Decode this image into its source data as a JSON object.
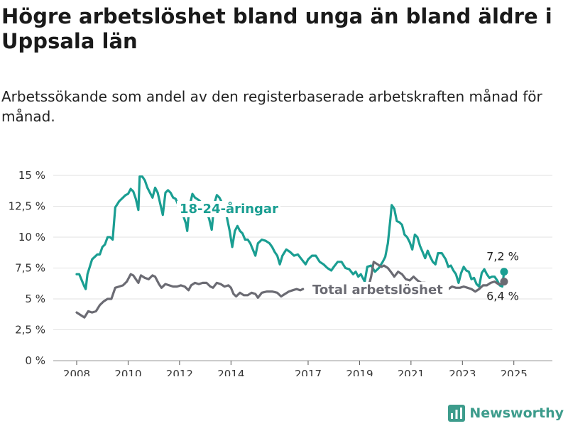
{
  "chart_data": {
    "type": "line",
    "title": "Högre arbetslöshet bland unga än bland äldre i Uppsala län",
    "subtitle": "Arbetssökande som andel av den registerbaserade arbetskraften månad för månad.",
    "ylim": [
      0,
      15
    ],
    "y_ticks": [
      "0 %",
      "2,5 %",
      "5 %",
      "7,5 %",
      "10 %",
      "12,5 %",
      "15 %"
    ],
    "y_tick_values": [
      0,
      2.5,
      5,
      7.5,
      10,
      12.5,
      15
    ],
    "x_range": [
      2008.0,
      2025.67
    ],
    "x_ticks": [
      "2008",
      "2010",
      "2012",
      "2014",
      "2017",
      "2019",
      "2021",
      "2023",
      "2025"
    ],
    "x_tick_values": [
      2008,
      2010,
      2012,
      2014,
      2017,
      2019,
      2021,
      2023,
      2025
    ],
    "grid": "horizontal",
    "series": [
      {
        "name": "18-24-åringar",
        "color": "#1a9e92",
        "end_label": "7,2 %",
        "points": [
          [
            2008.0,
            7.0
          ],
          [
            2008.1,
            7.0
          ],
          [
            2008.2,
            6.5
          ],
          [
            2008.3,
            6.0
          ],
          [
            2008.35,
            5.8
          ],
          [
            2008.42,
            7.0
          ],
          [
            2008.6,
            8.2
          ],
          [
            2008.8,
            8.6
          ],
          [
            2008.9,
            8.6
          ],
          [
            2009.0,
            9.2
          ],
          [
            2009.1,
            9.4
          ],
          [
            2009.2,
            10.0
          ],
          [
            2009.3,
            10.0
          ],
          [
            2009.4,
            9.8
          ],
          [
            2009.5,
            12.4
          ],
          [
            2009.65,
            12.9
          ],
          [
            2009.8,
            13.2
          ],
          [
            2009.9,
            13.4
          ],
          [
            2010.0,
            13.5
          ],
          [
            2010.1,
            13.9
          ],
          [
            2010.2,
            13.7
          ],
          [
            2010.3,
            13.1
          ],
          [
            2010.4,
            12.2
          ],
          [
            2010.45,
            14.9
          ],
          [
            2010.55,
            14.9
          ],
          [
            2010.65,
            14.6
          ],
          [
            2010.75,
            14.0
          ],
          [
            2010.85,
            13.6
          ],
          [
            2010.95,
            13.2
          ],
          [
            2011.05,
            14.0
          ],
          [
            2011.15,
            13.6
          ],
          [
            2011.25,
            12.7
          ],
          [
            2011.35,
            11.8
          ],
          [
            2011.45,
            13.6
          ],
          [
            2011.55,
            13.8
          ],
          [
            2011.65,
            13.6
          ],
          [
            2011.75,
            13.2
          ],
          [
            2011.85,
            13.1
          ],
          [
            2011.95,
            12.6
          ],
          [
            2012.05,
            11.8
          ],
          [
            2012.15,
            11.7
          ],
          [
            2012.25,
            11.1
          ],
          [
            2012.3,
            10.5
          ],
          [
            2012.38,
            12.4
          ],
          [
            2012.5,
            13.5
          ],
          [
            2012.6,
            13.2
          ],
          [
            2012.75,
            13.0
          ],
          [
            2012.85,
            12.8
          ],
          [
            2012.95,
            12.5
          ],
          [
            2013.05,
            12.0
          ],
          [
            2013.15,
            11.5
          ],
          [
            2013.25,
            10.6
          ],
          [
            2013.35,
            12.7
          ],
          [
            2013.45,
            13.4
          ],
          [
            2013.55,
            13.2
          ],
          [
            2013.65,
            12.8
          ],
          [
            2013.75,
            12.4
          ],
          [
            2013.85,
            11.5
          ],
          [
            2013.95,
            10.5
          ],
          [
            2014.05,
            9.2
          ],
          [
            2014.15,
            10.5
          ],
          [
            2014.25,
            10.9
          ],
          [
            2014.35,
            10.5
          ],
          [
            2014.45,
            10.3
          ],
          [
            2014.55,
            9.8
          ],
          [
            2014.65,
            9.8
          ],
          [
            2014.75,
            9.5
          ],
          [
            2014.85,
            9.0
          ],
          [
            2014.95,
            8.5
          ],
          [
            2015.05,
            9.5
          ],
          [
            2015.2,
            9.8
          ],
          [
            2015.35,
            9.7
          ],
          [
            2015.5,
            9.5
          ],
          [
            2015.6,
            9.2
          ],
          [
            2015.7,
            8.8
          ],
          [
            2015.8,
            8.5
          ],
          [
            2015.9,
            7.8
          ],
          [
            2016.0,
            8.5
          ],
          [
            2016.15,
            9.0
          ],
          [
            2016.3,
            8.8
          ],
          [
            2016.45,
            8.5
          ],
          [
            2016.6,
            8.6
          ],
          [
            2016.75,
            8.2
          ],
          [
            2016.9,
            7.8
          ],
          [
            2017.0,
            8.2
          ],
          [
            2017.15,
            8.5
          ],
          [
            2017.3,
            8.5
          ],
          [
            2017.45,
            8.0
          ],
          [
            2017.6,
            7.8
          ],
          [
            2017.75,
            7.5
          ],
          [
            2017.9,
            7.3
          ],
          [
            2018.0,
            7.6
          ],
          [
            2018.15,
            8.0
          ],
          [
            2018.3,
            8.0
          ],
          [
            2018.45,
            7.5
          ],
          [
            2018.6,
            7.4
          ],
          [
            2018.75,
            7.0
          ],
          [
            2018.85,
            7.2
          ],
          [
            2018.95,
            6.8
          ],
          [
            2019.05,
            7.0
          ],
          [
            2019.2,
            6.4
          ],
          [
            2019.3,
            7.6
          ],
          [
            2019.45,
            7.7
          ],
          [
            2019.6,
            7.2
          ],
          [
            2019.75,
            7.5
          ],
          [
            2019.9,
            8.0
          ],
          [
            2020.0,
            8.4
          ],
          [
            2020.1,
            9.5
          ],
          [
            2020.2,
            11.5
          ],
          [
            2020.25,
            12.6
          ],
          [
            2020.35,
            12.3
          ],
          [
            2020.45,
            11.3
          ],
          [
            2020.55,
            11.2
          ],
          [
            2020.65,
            11.0
          ],
          [
            2020.75,
            10.2
          ],
          [
            2020.85,
            10.0
          ],
          [
            2020.95,
            9.6
          ],
          [
            2021.05,
            9.0
          ],
          [
            2021.15,
            10.2
          ],
          [
            2021.25,
            10.0
          ],
          [
            2021.35,
            9.3
          ],
          [
            2021.45,
            8.8
          ],
          [
            2021.55,
            8.3
          ],
          [
            2021.65,
            8.9
          ],
          [
            2021.75,
            8.4
          ],
          [
            2021.85,
            8.0
          ],
          [
            2021.95,
            7.8
          ],
          [
            2022.05,
            8.7
          ],
          [
            2022.2,
            8.7
          ],
          [
            2022.35,
            8.2
          ],
          [
            2022.45,
            7.6
          ],
          [
            2022.55,
            7.7
          ],
          [
            2022.65,
            7.3
          ],
          [
            2022.75,
            7.0
          ],
          [
            2022.85,
            6.3
          ],
          [
            2022.95,
            7.1
          ],
          [
            2023.05,
            7.6
          ],
          [
            2023.15,
            7.3
          ],
          [
            2023.25,
            7.2
          ],
          [
            2023.35,
            6.6
          ],
          [
            2023.45,
            6.7
          ],
          [
            2023.55,
            6.2
          ],
          [
            2023.65,
            6.0
          ],
          [
            2023.75,
            7.1
          ],
          [
            2023.85,
            7.4
          ],
          [
            2023.95,
            7.0
          ],
          [
            2024.05,
            6.7
          ],
          [
            2024.15,
            6.8
          ],
          [
            2024.25,
            6.8
          ],
          [
            2024.35,
            6.5
          ],
          [
            2024.45,
            6.1
          ],
          [
            2024.55,
            6.0
          ],
          [
            2024.62,
            7.2
          ]
        ]
      },
      {
        "name": "Total arbetslöshet",
        "color": "#6b6b73",
        "end_label": "6,4 %",
        "points": [
          [
            2008.0,
            3.9
          ],
          [
            2008.15,
            3.7
          ],
          [
            2008.3,
            3.5
          ],
          [
            2008.45,
            4.0
          ],
          [
            2008.6,
            3.9
          ],
          [
            2008.75,
            4.0
          ],
          [
            2008.9,
            4.5
          ],
          [
            2009.05,
            4.8
          ],
          [
            2009.2,
            5.0
          ],
          [
            2009.35,
            5.0
          ],
          [
            2009.5,
            5.9
          ],
          [
            2009.65,
            6.0
          ],
          [
            2009.8,
            6.1
          ],
          [
            2009.95,
            6.4
          ],
          [
            2010.1,
            7.0
          ],
          [
            2010.2,
            6.9
          ],
          [
            2010.3,
            6.6
          ],
          [
            2010.4,
            6.3
          ],
          [
            2010.5,
            6.9
          ],
          [
            2010.65,
            6.7
          ],
          [
            2010.8,
            6.6
          ],
          [
            2010.95,
            6.9
          ],
          [
            2011.05,
            6.8
          ],
          [
            2011.2,
            6.2
          ],
          [
            2011.3,
            5.9
          ],
          [
            2011.45,
            6.2
          ],
          [
            2011.6,
            6.1
          ],
          [
            2011.75,
            6.0
          ],
          [
            2011.9,
            6.0
          ],
          [
            2012.05,
            6.1
          ],
          [
            2012.2,
            6.0
          ],
          [
            2012.35,
            5.7
          ],
          [
            2012.45,
            6.1
          ],
          [
            2012.6,
            6.3
          ],
          [
            2012.75,
            6.2
          ],
          [
            2012.9,
            6.3
          ],
          [
            2013.05,
            6.3
          ],
          [
            2013.2,
            6.0
          ],
          [
            2013.3,
            5.9
          ],
          [
            2013.45,
            6.3
          ],
          [
            2013.6,
            6.2
          ],
          [
            2013.75,
            6.0
          ],
          [
            2013.9,
            6.1
          ],
          [
            2014.0,
            5.9
          ],
          [
            2014.1,
            5.4
          ],
          [
            2014.2,
            5.2
          ],
          [
            2014.35,
            5.5
          ],
          [
            2014.5,
            5.3
          ],
          [
            2014.65,
            5.3
          ],
          [
            2014.8,
            5.5
          ],
          [
            2014.95,
            5.4
          ],
          [
            2015.05,
            5.1
          ],
          [
            2015.2,
            5.5
          ],
          [
            2015.4,
            5.6
          ],
          [
            2015.6,
            5.6
          ],
          [
            2015.8,
            5.5
          ],
          [
            2015.95,
            5.2
          ],
          [
            2016.1,
            5.4
          ],
          [
            2016.25,
            5.6
          ],
          [
            2016.4,
            5.7
          ],
          [
            2016.55,
            5.8
          ],
          [
            2016.7,
            5.7
          ],
          [
            2016.8,
            5.8
          ],
          [
            2019.3,
            5.6
          ],
          [
            2019.45,
            6.8
          ],
          [
            2019.55,
            8.0
          ],
          [
            2019.7,
            7.8
          ],
          [
            2019.85,
            7.6
          ],
          [
            2019.95,
            7.7
          ],
          [
            2020.1,
            7.5
          ],
          [
            2020.25,
            7.1
          ],
          [
            2020.35,
            6.8
          ],
          [
            2020.5,
            7.2
          ],
          [
            2020.65,
            7.0
          ],
          [
            2020.8,
            6.6
          ],
          [
            2020.95,
            6.5
          ],
          [
            2021.1,
            6.8
          ],
          [
            2021.25,
            6.5
          ],
          [
            2021.4,
            6.3
          ],
          [
            2021.55,
            6.3
          ],
          [
            2021.7,
            6.2
          ],
          [
            2021.85,
            6.2
          ],
          [
            2022.0,
            6.0
          ],
          [
            2022.15,
            5.9
          ],
          [
            2022.3,
            5.9
          ],
          [
            2022.45,
            5.8
          ],
          [
            2022.6,
            6.0
          ],
          [
            2022.75,
            5.9
          ],
          [
            2022.9,
            5.9
          ],
          [
            2023.05,
            6.0
          ],
          [
            2023.2,
            5.9
          ],
          [
            2023.35,
            5.8
          ],
          [
            2023.5,
            5.6
          ],
          [
            2023.65,
            5.8
          ],
          [
            2023.8,
            6.1
          ],
          [
            2023.95,
            6.1
          ],
          [
            2024.1,
            6.3
          ],
          [
            2024.25,
            6.4
          ],
          [
            2024.4,
            6.2
          ],
          [
            2024.55,
            6.2
          ],
          [
            2024.62,
            6.4
          ]
        ]
      }
    ]
  },
  "brand": {
    "name": "Newsworthy",
    "color": "#3d9c8c"
  }
}
